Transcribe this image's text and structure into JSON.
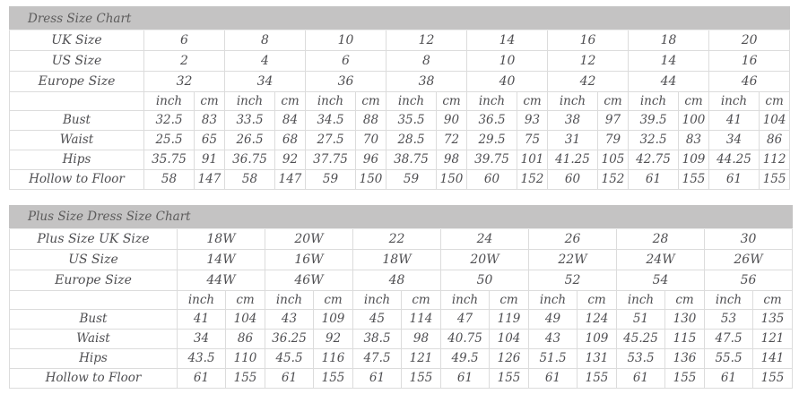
{
  "colors": {
    "title_bar_bg": "#c4c3c3",
    "text": "#4f4f52",
    "accent_red": "#dd0000",
    "cell_border": "#dcdcdc"
  },
  "tables": [
    {
      "title": "Dress Size Chart",
      "units": [
        "inch",
        "cm"
      ],
      "size_rows": [
        {
          "label": "UK Size",
          "highlight": true,
          "values": [
            "6",
            "8",
            "10",
            "12",
            "14",
            "16",
            "18",
            "20"
          ]
        },
        {
          "label": "US Size",
          "highlight": false,
          "values": [
            "2",
            "4",
            "6",
            "8",
            "10",
            "12",
            "14",
            "16"
          ]
        },
        {
          "label": "Europe Size",
          "highlight": false,
          "values": [
            "32",
            "34",
            "36",
            "38",
            "40",
            "42",
            "44",
            "46"
          ]
        }
      ],
      "measure_rows": [
        {
          "label": "Bust",
          "pairs": [
            [
              "32.5",
              "83"
            ],
            [
              "33.5",
              "84"
            ],
            [
              "34.5",
              "88"
            ],
            [
              "35.5",
              "90"
            ],
            [
              "36.5",
              "93"
            ],
            [
              "38",
              "97"
            ],
            [
              "39.5",
              "100"
            ],
            [
              "41",
              "104"
            ]
          ]
        },
        {
          "label": "Waist",
          "pairs": [
            [
              "25.5",
              "65"
            ],
            [
              "26.5",
              "68"
            ],
            [
              "27.5",
              "70"
            ],
            [
              "28.5",
              "72"
            ],
            [
              "29.5",
              "75"
            ],
            [
              "31",
              "79"
            ],
            [
              "32.5",
              "83"
            ],
            [
              "34",
              "86"
            ]
          ]
        },
        {
          "label": "Hips",
          "pairs": [
            [
              "35.75",
              "91"
            ],
            [
              "36.75",
              "92"
            ],
            [
              "37.75",
              "96"
            ],
            [
              "38.75",
              "98"
            ],
            [
              "39.75",
              "101"
            ],
            [
              "41.25",
              "105"
            ],
            [
              "42.75",
              "109"
            ],
            [
              "44.25",
              "112"
            ]
          ]
        },
        {
          "label": "Hollow to Floor",
          "pairs": [
            [
              "58",
              "147"
            ],
            [
              "58",
              "147"
            ],
            [
              "59",
              "150"
            ],
            [
              "59",
              "150"
            ],
            [
              "60",
              "152"
            ],
            [
              "60",
              "152"
            ],
            [
              "61",
              "155"
            ],
            [
              "61",
              "155"
            ]
          ]
        }
      ]
    },
    {
      "title": "Plus Size Dress Size Chart",
      "units": [
        "inch",
        "cm"
      ],
      "size_rows": [
        {
          "label": "Plus Size UK Size",
          "highlight": true,
          "values": [
            "18W",
            "20W",
            "22",
            "24",
            "26",
            "28",
            "30"
          ]
        },
        {
          "label": "US Size",
          "highlight": false,
          "values": [
            "14W",
            "16W",
            "18W",
            "20W",
            "22W",
            "24W",
            "26W"
          ]
        },
        {
          "label": "Europe Size",
          "highlight": false,
          "values": [
            "44W",
            "46W",
            "48",
            "50",
            "52",
            "54",
            "56"
          ]
        }
      ],
      "measure_rows": [
        {
          "label": "Bust",
          "pairs": [
            [
              "41",
              "104"
            ],
            [
              "43",
              "109"
            ],
            [
              "45",
              "114"
            ],
            [
              "47",
              "119"
            ],
            [
              "49",
              "124"
            ],
            [
              "51",
              "130"
            ],
            [
              "53",
              "135"
            ]
          ]
        },
        {
          "label": "Waist",
          "pairs": [
            [
              "34",
              "86"
            ],
            [
              "36.25",
              "92"
            ],
            [
              "38.5",
              "98"
            ],
            [
              "40.75",
              "104"
            ],
            [
              "43",
              "109"
            ],
            [
              "45.25",
              "115"
            ],
            [
              "47.5",
              "121"
            ]
          ]
        },
        {
          "label": "Hips",
          "pairs": [
            [
              "43.5",
              "110"
            ],
            [
              "45.5",
              "116"
            ],
            [
              "47.5",
              "121"
            ],
            [
              "49.5",
              "126"
            ],
            [
              "51.5",
              "131"
            ],
            [
              "53.5",
              "136"
            ],
            [
              "55.5",
              "141"
            ]
          ]
        },
        {
          "label": "Hollow to Floor",
          "pairs": [
            [
              "61",
              "155"
            ],
            [
              "61",
              "155"
            ],
            [
              "61",
              "155"
            ],
            [
              "61",
              "155"
            ],
            [
              "61",
              "155"
            ],
            [
              "61",
              "155"
            ],
            [
              "61",
              "155"
            ]
          ]
        }
      ]
    }
  ]
}
